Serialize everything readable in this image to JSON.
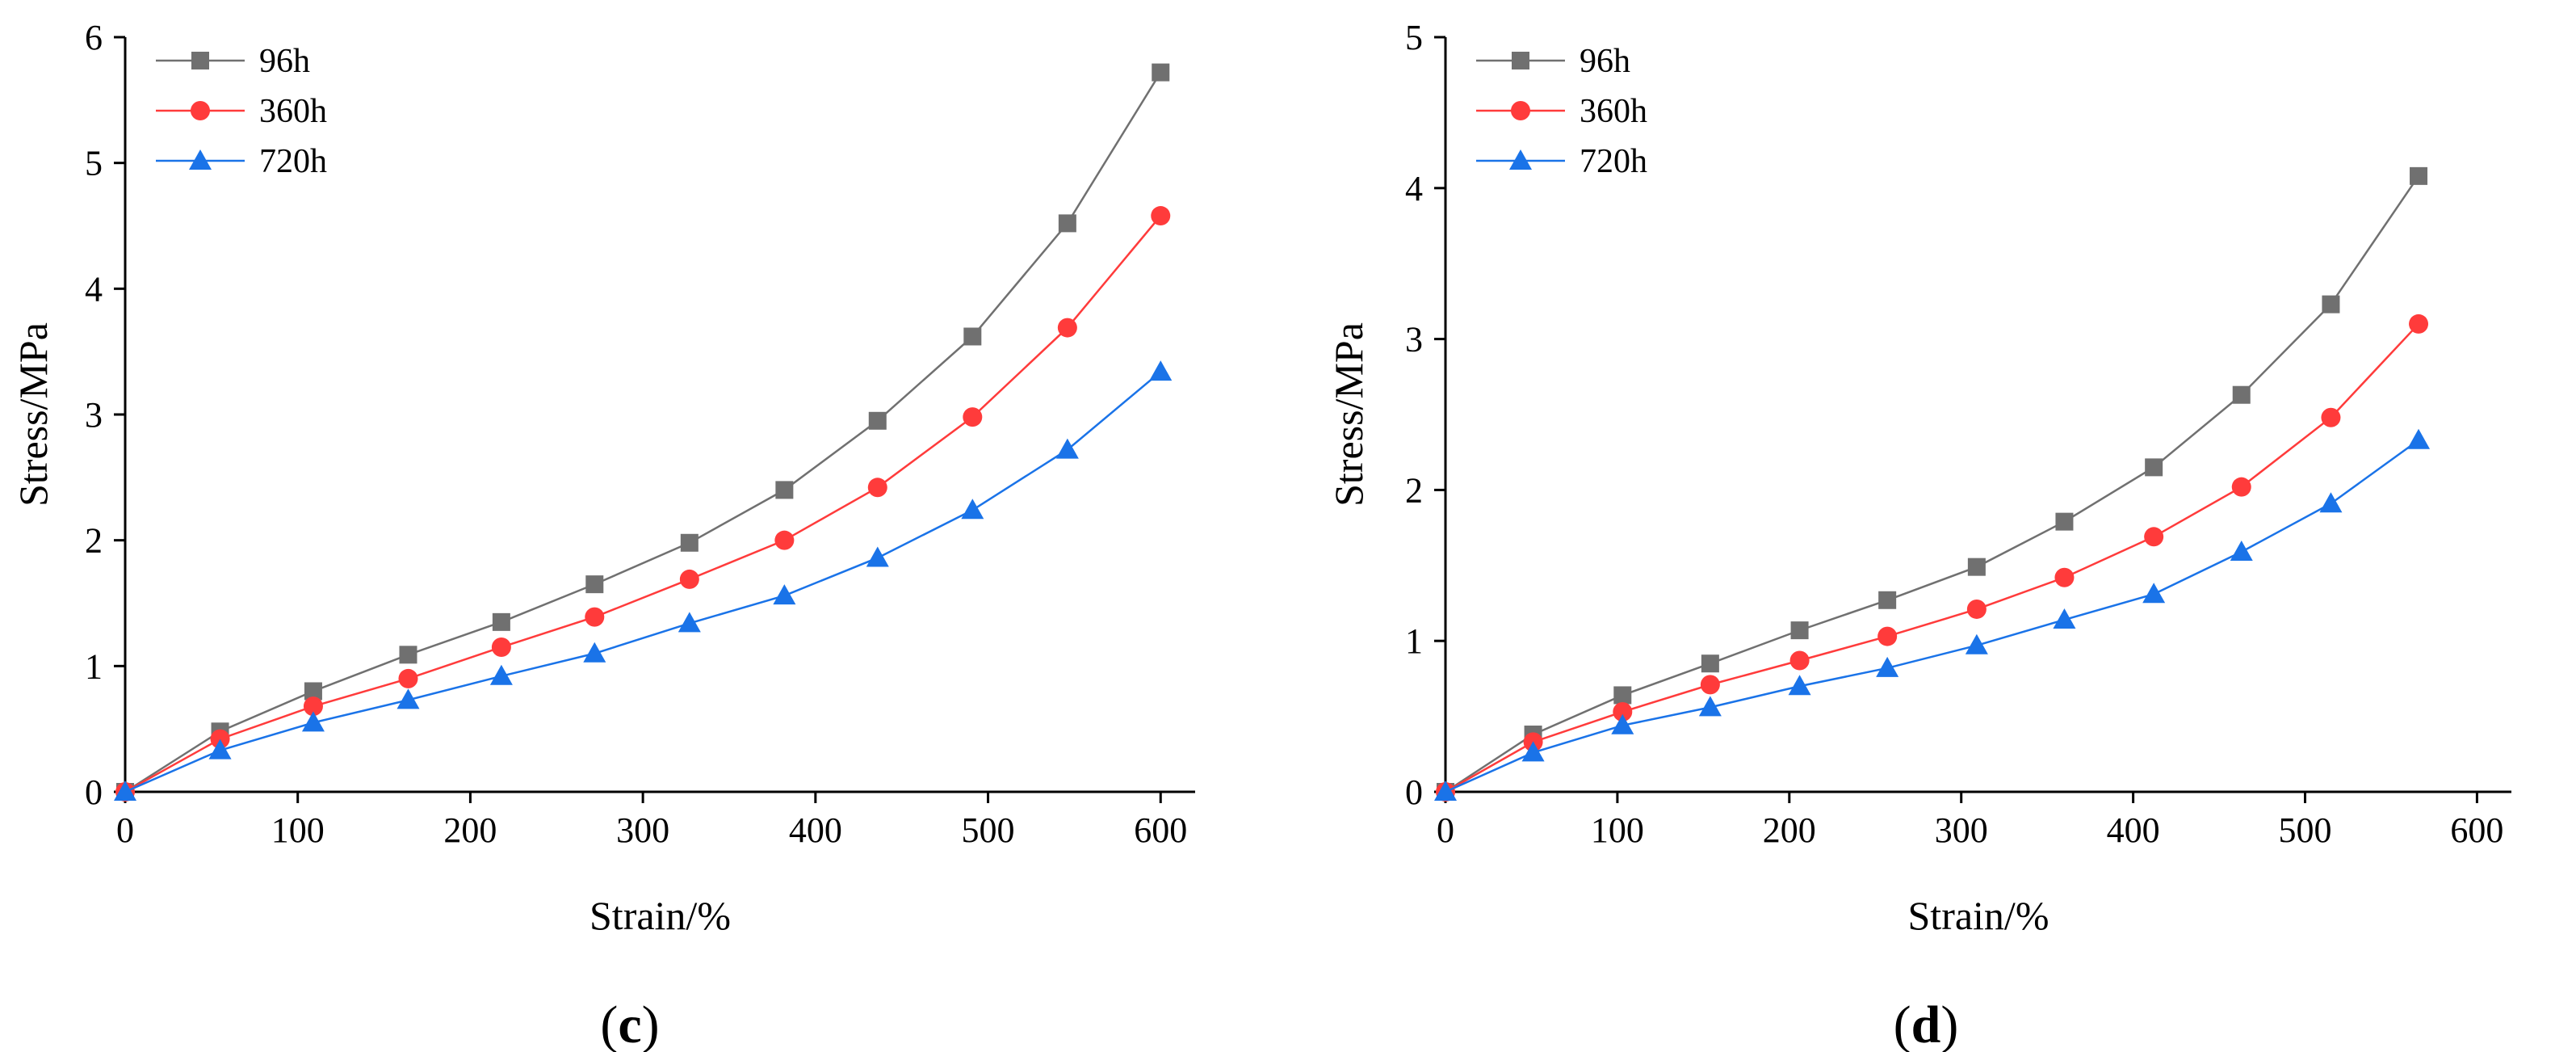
{
  "chart_data": [
    {
      "type": "line",
      "panel_label": "c",
      "xlabel": "Strain/%",
      "ylabel": "Stress/MPa",
      "xlim": [
        0,
        620
      ],
      "ylim": [
        0,
        6
      ],
      "xticks": [
        0,
        100,
        200,
        300,
        400,
        500,
        600
      ],
      "yticks": [
        0,
        1,
        2,
        3,
        4,
        5,
        6
      ],
      "grid": false,
      "legend_position": "top-left",
      "x": [
        0,
        55,
        109,
        164,
        218,
        272,
        327,
        382,
        436,
        491,
        546,
        600
      ],
      "series": [
        {
          "name": "96h",
          "marker": "square",
          "color": "#707070",
          "values": [
            0,
            0.48,
            0.8,
            1.09,
            1.35,
            1.65,
            1.98,
            2.4,
            2.95,
            3.62,
            4.52,
            5.72
          ]
        },
        {
          "name": "360h",
          "marker": "circle",
          "color": "#ff3b3b",
          "values": [
            0,
            0.42,
            0.68,
            0.9,
            1.15,
            1.39,
            1.69,
            2.0,
            2.42,
            2.98,
            3.69,
            4.58
          ]
        },
        {
          "name": "720h",
          "marker": "triangle",
          "color": "#1a73e8",
          "values": [
            0,
            0.33,
            0.55,
            0.73,
            0.92,
            1.1,
            1.34,
            1.56,
            1.86,
            2.24,
            2.72,
            3.34
          ]
        }
      ]
    },
    {
      "type": "line",
      "panel_label": "d",
      "xlabel": "Strain/%",
      "ylabel": "Stress/MPa",
      "xlim": [
        0,
        620
      ],
      "ylim": [
        0,
        5
      ],
      "xticks": [
        0,
        100,
        200,
        300,
        400,
        500,
        600
      ],
      "yticks": [
        0,
        1,
        2,
        3,
        4,
        5
      ],
      "grid": false,
      "legend_position": "top-left",
      "x": [
        0,
        51,
        103,
        154,
        206,
        257,
        309,
        360,
        412,
        463,
        515,
        566
      ],
      "series": [
        {
          "name": "96h",
          "marker": "square",
          "color": "#707070",
          "values": [
            0,
            0.38,
            0.64,
            0.85,
            1.07,
            1.27,
            1.49,
            1.79,
            2.15,
            2.63,
            3.23,
            4.08
          ]
        },
        {
          "name": "360h",
          "marker": "circle",
          "color": "#ff3b3b",
          "values": [
            0,
            0.33,
            0.53,
            0.71,
            0.87,
            1.03,
            1.21,
            1.42,
            1.69,
            2.02,
            2.48,
            3.1
          ]
        },
        {
          "name": "720h",
          "marker": "triangle",
          "color": "#1a73e8",
          "values": [
            0,
            0.26,
            0.44,
            0.56,
            0.7,
            0.82,
            0.97,
            1.14,
            1.31,
            1.59,
            1.91,
            2.33
          ]
        }
      ]
    }
  ]
}
